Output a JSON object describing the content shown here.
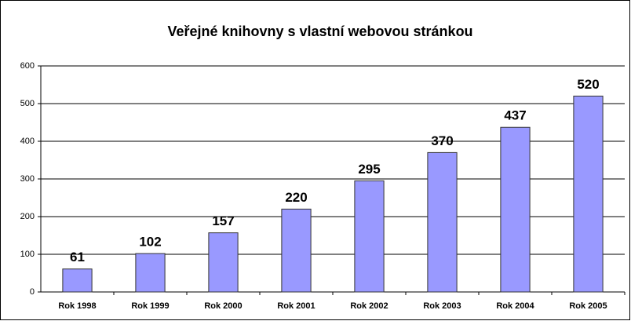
{
  "chart_data": {
    "type": "bar",
    "title": "Veřejné knihovny s vlastní webovou stránkou",
    "categories": [
      "Rok 1998",
      "Rok 1999",
      "Rok 2000",
      "Rok 2001",
      "Rok 2002",
      "Rok 2003",
      "Rok 2004",
      "Rok 2005"
    ],
    "values": [
      61,
      102,
      157,
      220,
      295,
      370,
      437,
      520
    ],
    "color": "#9999ff",
    "ylim": [
      0,
      600
    ],
    "yticks": [
      0,
      100,
      200,
      300,
      400,
      500,
      600
    ],
    "grid": true
  }
}
